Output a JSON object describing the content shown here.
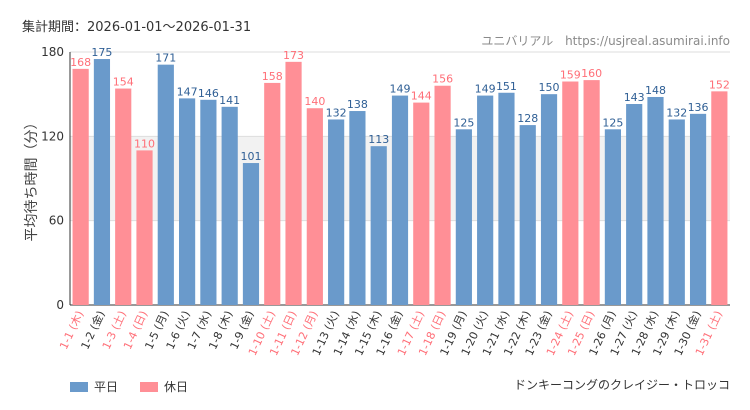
{
  "header": {
    "period_label": "集計期間：2026-01-01～2026-01-31",
    "site_label": "ユニバリアル",
    "site_url": "https://usjreal.asumirai.info"
  },
  "footer": {
    "attraction_name": "ドンキーコングのクレイジー・トロッコ"
  },
  "legend": [
    {
      "name": "平日",
      "color": "#6a9acb"
    },
    {
      "name": "休日",
      "color": "#ff8f96"
    }
  ],
  "chart_data": {
    "type": "bar",
    "ylabel": "平均待ち時間（分）",
    "ylim": [
      0,
      180
    ],
    "yticks": [
      0,
      60,
      120,
      180
    ],
    "grid": true,
    "colors": {
      "weekday": "#6a9acb",
      "holiday": "#ff8f96",
      "holiday_label": "#ff6f78",
      "weekday_label": "#2f5f95"
    },
    "categories": [
      "1-1 (木)",
      "1-2 (金)",
      "1-3 (土)",
      "1-4 (日)",
      "1-5 (月)",
      "1-6 (火)",
      "1-7 (水)",
      "1-8 (木)",
      "1-9 (金)",
      "1-10 (土)",
      "1-11 (日)",
      "1-12 (月)",
      "1-13 (火)",
      "1-14 (水)",
      "1-15 (木)",
      "1-16 (金)",
      "1-17 (土)",
      "1-18 (日)",
      "1-19 (月)",
      "1-20 (火)",
      "1-21 (水)",
      "1-22 (木)",
      "1-23 (金)",
      "1-24 (土)",
      "1-25 (日)",
      "1-26 (月)",
      "1-27 (火)",
      "1-28 (水)",
      "1-29 (木)",
      "1-30 (金)",
      "1-31 (土)"
    ],
    "values": [
      168,
      175,
      154,
      110,
      171,
      147,
      146,
      141,
      101,
      158,
      173,
      140,
      132,
      138,
      113,
      149,
      144,
      156,
      125,
      149,
      151,
      128,
      150,
      159,
      160,
      125,
      143,
      148,
      132,
      136,
      152
    ],
    "day_type": [
      "holiday",
      "weekday",
      "holiday",
      "holiday",
      "weekday",
      "weekday",
      "weekday",
      "weekday",
      "weekday",
      "holiday",
      "holiday",
      "holiday",
      "weekday",
      "weekday",
      "weekday",
      "weekday",
      "holiday",
      "holiday",
      "weekday",
      "weekday",
      "weekday",
      "weekday",
      "weekday",
      "holiday",
      "holiday",
      "weekday",
      "weekday",
      "weekday",
      "weekday",
      "weekday",
      "holiday"
    ]
  }
}
